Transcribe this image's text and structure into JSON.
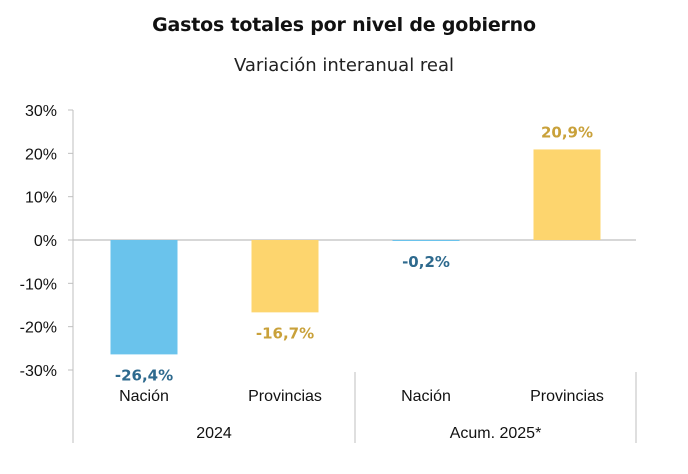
{
  "chart_data": {
    "type": "bar",
    "title": "Gastos totales por nivel de gobierno",
    "subtitle": "Variación interanual real",
    "xlabel": "",
    "ylabel": "",
    "ylim": [
      -30,
      30
    ],
    "yticks": [
      30,
      20,
      10,
      0,
      -10,
      -20,
      -30
    ],
    "ytick_labels": [
      "30%",
      "20%",
      "10%",
      "0%",
      "-10%",
      "-20%",
      "-30%"
    ],
    "grid": false,
    "legend": "none",
    "groups": [
      {
        "label": "2024",
        "categories": [
          {
            "label": "Nación",
            "value": -26.4,
            "value_label": "-26,4%",
            "series": "Nación"
          },
          {
            "label": "Provincias",
            "value": -16.7,
            "value_label": "-16,7%",
            "series": "Provincias"
          }
        ]
      },
      {
        "label": "Acum. 2025*",
        "categories": [
          {
            "label": "Nación",
            "value": -0.2,
            "value_label": "-0,2%",
            "series": "Nación"
          },
          {
            "label": "Provincias",
            "value": 20.9,
            "value_label": "20,9%",
            "series": "Provincias"
          }
        ]
      }
    ],
    "series_colors": {
      "Nación": {
        "bar": "#6ac3ec",
        "label": "#2e6a8e"
      },
      "Provincias": {
        "bar": "#fdd56e",
        "label": "#c9a13a"
      }
    }
  }
}
